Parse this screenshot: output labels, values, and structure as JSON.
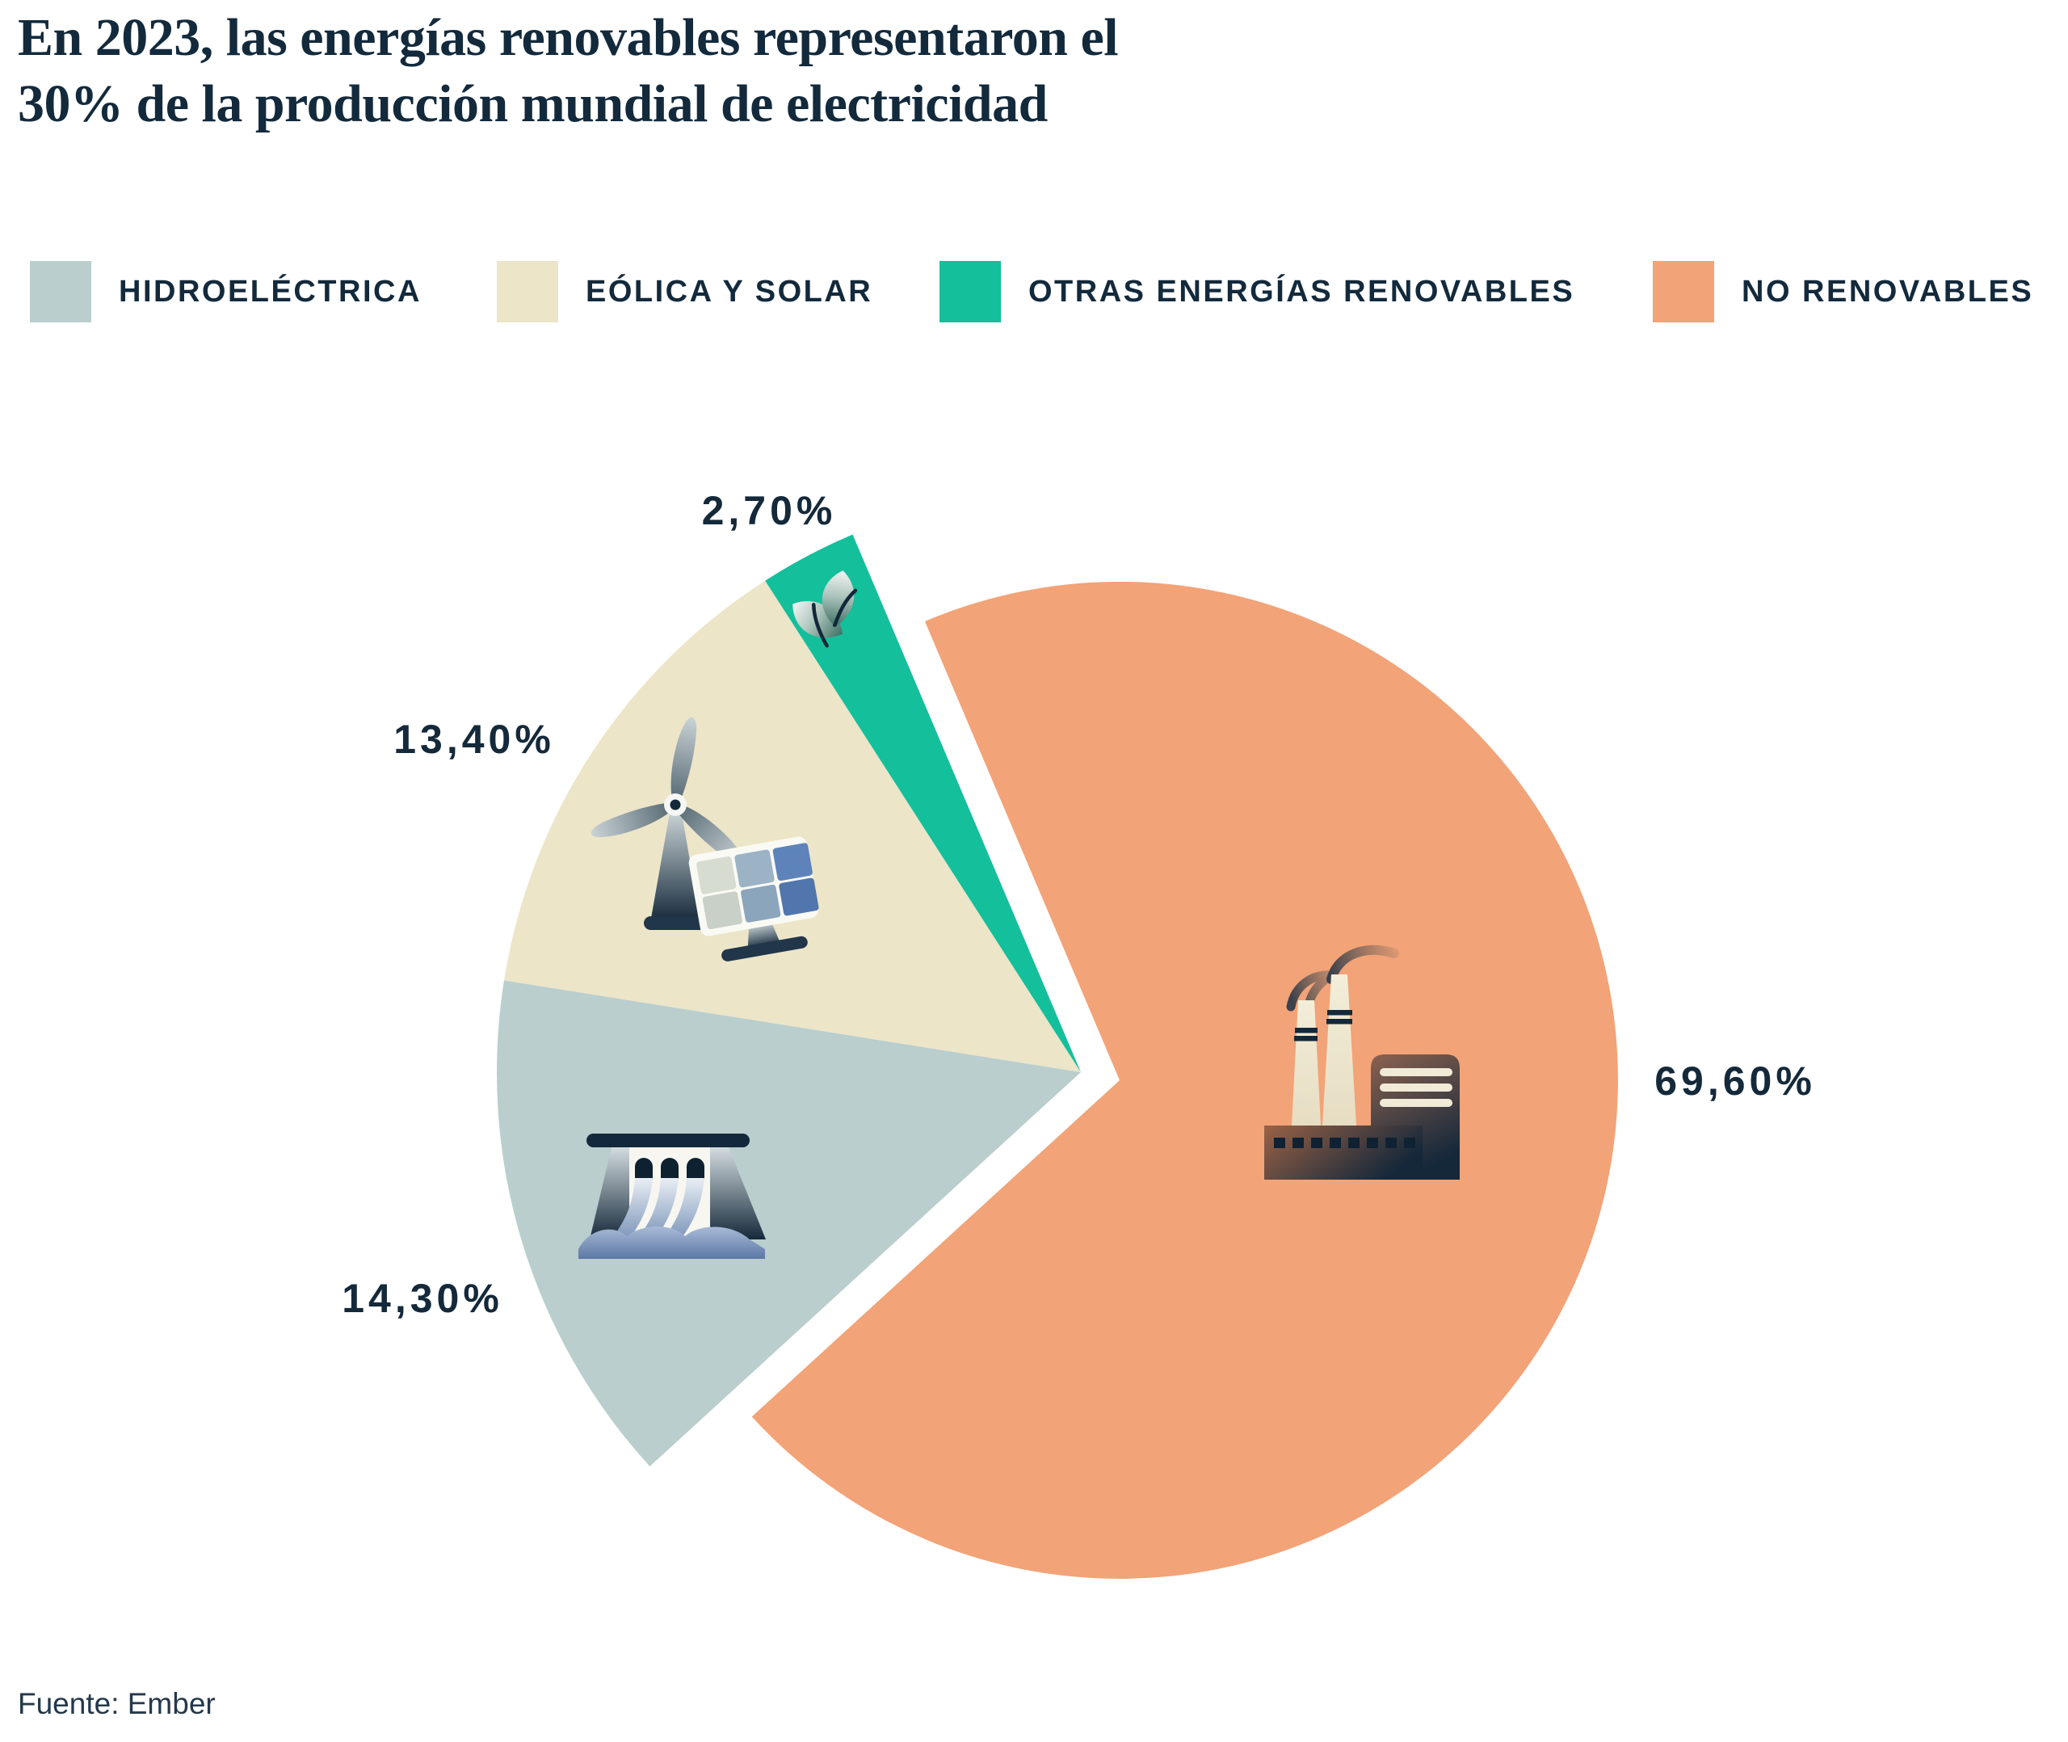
{
  "title": "En 2023, las energías renovables representaron el 30% de la producción mundial de electricidad",
  "title_lines": [
    "En 2023, las energías renovables representaron el",
    "30% de la producción mundial de electricidad"
  ],
  "source": "Fuente: Ember",
  "legend": {
    "items": [
      {
        "label": "HIDROELÉCTRICA",
        "color": "#b9cecd"
      },
      {
        "label": "EÓLICA Y SOLAR",
        "color": "#ece5c8"
      },
      {
        "label": "OTRAS ENERGÍAS RENOVABLES",
        "color": "#14bf9b"
      },
      {
        "label": "NO RENOVABLES",
        "color": "#f2a377"
      }
    ]
  },
  "chart_data": {
    "type": "pie",
    "title": "En 2023, las energías renovables representaron el 30% de la producción mundial de electricidad",
    "unit": "%",
    "decimal_separator": ",",
    "legend_position": "top",
    "year": 2023,
    "total_renewables_pct": 30,
    "source": "Ember",
    "slices": [
      {
        "id": "hidroelectrica",
        "label": "Hidroeléctrica",
        "value": 14.3,
        "display": "14,30%",
        "color": "#b9cecd",
        "exploded": false,
        "icon": "dam-icon"
      },
      {
        "id": "eolica-y-solar",
        "label": "Eólica y solar",
        "value": 13.4,
        "display": "13,40%",
        "color": "#ece5c8",
        "exploded": false,
        "icon": "wind-solar-icon"
      },
      {
        "id": "otras-renovables",
        "label": "Otras energías renovables",
        "value": 2.7,
        "display": "2,70%",
        "color": "#14bf9b",
        "exploded": false,
        "icon": "leaf-icon"
      },
      {
        "id": "no-renovables",
        "label": "No renovables",
        "value": 69.6,
        "display": "69,60%",
        "color": "#f2a377",
        "exploded": true,
        "icon": "factory-icon"
      }
    ]
  }
}
